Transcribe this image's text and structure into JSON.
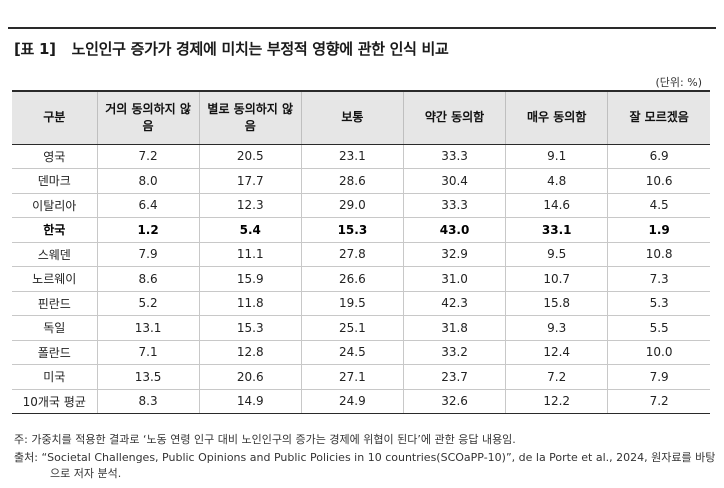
{
  "title": {
    "tag": "[표 1]",
    "text": "노인인구 증가가 경제에 미치는 부정적 영향에 관한 인식 비교"
  },
  "unit": "(단위: %)",
  "table": {
    "headers": [
      "구분",
      "거의 동의하지 않음",
      "별로 동의하지 않음",
      "보통",
      "약간 동의함",
      "매우 동의함",
      "잘 모르겠음"
    ],
    "rows": [
      [
        "영국",
        "7.2",
        "20.5",
        "23.1",
        "33.3",
        "9.1",
        "6.9"
      ],
      [
        "덴마크",
        "8.0",
        "17.7",
        "28.6",
        "30.4",
        "4.8",
        "10.6"
      ],
      [
        "이탈리아",
        "6.4",
        "12.3",
        "29.0",
        "33.3",
        "14.6",
        "4.5"
      ],
      [
        "한국",
        "1.2",
        "5.4",
        "15.3",
        "43.0",
        "33.1",
        "1.9"
      ],
      [
        "스웨덴",
        "7.9",
        "11.1",
        "27.8",
        "32.9",
        "9.5",
        "10.8"
      ],
      [
        "노르웨이",
        "8.6",
        "15.9",
        "26.6",
        "31.0",
        "10.7",
        "7.3"
      ],
      [
        "핀란드",
        "5.2",
        "11.8",
        "19.5",
        "42.3",
        "15.8",
        "5.3"
      ],
      [
        "독일",
        "13.1",
        "15.3",
        "25.1",
        "31.8",
        "9.3",
        "5.5"
      ],
      [
        "폴란드",
        "7.1",
        "12.8",
        "24.5",
        "33.2",
        "12.4",
        "10.0"
      ],
      [
        "미국",
        "13.5",
        "20.6",
        "27.1",
        "23.7",
        "7.2",
        "7.9"
      ],
      [
        "10개국 평균",
        "8.3",
        "14.9",
        "24.9",
        "32.6",
        "12.2",
        "7.2"
      ]
    ],
    "highlight_row": "한국"
  },
  "footnotes": {
    "note": "주: 가중치를 적용한 결과로 ‘노동 연령 인구 대비 노인인구의 증가는 경제에 위협이 된다’에 관한 응답 내용임.",
    "source_line1": "출처: “Societal Challenges, Public Opinions and Public Policies in 10 countries(SCOaPP-10)”, de la Porte et al., 2024, 원자료를 바탕",
    "source_line2": "으로 저자 분석."
  }
}
